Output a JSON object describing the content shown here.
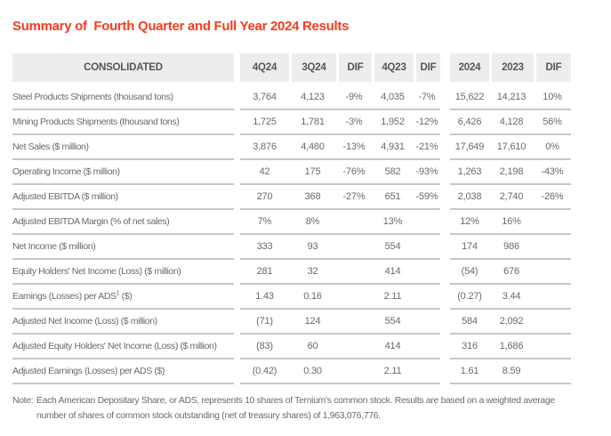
{
  "title": "Summary of  Fourth Quarter and Full Year 2024 Results",
  "table": {
    "header": {
      "label": "CONSOLIDATED",
      "columns": [
        "4Q24",
        "3Q24",
        "DIF",
        "4Q23",
        "DIF",
        "2024",
        "2023",
        "DIF"
      ]
    },
    "rows": [
      {
        "label": "Steel Products Shipments (thousand tons)",
        "values": [
          "3,764",
          "4,123",
          "-9%",
          "4,035",
          "-7%",
          "15,622",
          "14,213",
          "10%"
        ]
      },
      {
        "label": "Mining Products Shipments (thousand tons)",
        "values": [
          "1,725",
          "1,781",
          "-3%",
          "1,952",
          "-12%",
          "6,426",
          "4,128",
          "56%"
        ]
      },
      {
        "label": "Net Sales ($ million)",
        "values": [
          "3,876",
          "4,480",
          "-13%",
          "4,931",
          "-21%",
          "17,649",
          "17,610",
          "0%"
        ]
      },
      {
        "label": "Operating Income ($ million)",
        "values": [
          "42",
          "175",
          "-76%",
          "582",
          "-93%",
          "1,263",
          "2,198",
          "-43%"
        ]
      },
      {
        "label": "Adjusted EBITDA ($ million)",
        "values": [
          "270",
          "368",
          "-27%",
          "651",
          "-59%",
          "2,038",
          "2,740",
          "-26%"
        ]
      },
      {
        "label": "Adjusted EBITDA Margin (% of net sales)",
        "values": [
          "7%",
          "8%",
          "",
          "13%",
          "",
          "12%",
          "16%",
          ""
        ]
      },
      {
        "label": "Net Income ($ million)",
        "values": [
          "333",
          "93",
          "",
          "554",
          "",
          "174",
          "986",
          ""
        ]
      },
      {
        "label": "Equity Holders' Net Income (Loss) ($ million)",
        "values": [
          "281",
          "32",
          "",
          "414",
          "",
          "(54)",
          "676",
          ""
        ]
      },
      {
        "label": "Earnings (Losses) per ADS",
        "sup": "1",
        "suffix": " ($)",
        "values": [
          "1.43",
          "0.16",
          "",
          "2.11",
          "",
          "(0.27)",
          "3.44",
          ""
        ]
      },
      {
        "label": "Adjusted Net Income (Loss) ($ million)",
        "values": [
          "(71)",
          "124",
          "",
          "554",
          "",
          "584",
          "2,092",
          ""
        ]
      },
      {
        "label": "Adjusted Equity Holders' Net Income (Loss) ($ million)",
        "values": [
          "(83)",
          "60",
          "",
          "414",
          "",
          "316",
          "1,686",
          ""
        ]
      },
      {
        "label": "Adjusted Earnings (Losses) per ADS ($)",
        "values": [
          "(0.42)",
          "0.30",
          "",
          "2.11",
          "",
          "1.61",
          "8.59",
          ""
        ]
      }
    ]
  },
  "footnote": {
    "label": "Note:",
    "text": "Each American Depositary Share, or ADS, represents 10 shares of Ternium's common stock. Results are based on a weighted average number of shares of common stock outstanding (net of treasury shares) of 1,963,076,776."
  },
  "colors": {
    "accent": "#fa3b1e",
    "header_bg": "#ededee",
    "header_text": "#55565a",
    "body_text": "#696a6d",
    "divider": "#c6c7c9"
  }
}
